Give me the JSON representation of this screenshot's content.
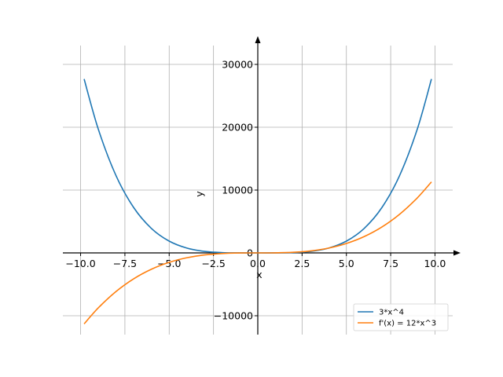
{
  "chart_data": {
    "type": "line",
    "xlabel": "x",
    "ylabel": "y",
    "xlim": [
      -11.0,
      11.0
    ],
    "ylim": [
      -13000,
      33000
    ],
    "grid": true,
    "legend_position": "bottom-right",
    "x_ticks": [
      -10.0,
      -7.5,
      -5.0,
      -2.5,
      0.0,
      2.5,
      5.0,
      7.5,
      10.0
    ],
    "x_tick_labels": [
      "−10.0",
      "−7.5",
      "−5.0",
      "−2.5",
      "0.0",
      "2.5",
      "5.0",
      "7.5",
      "10.0"
    ],
    "y_ticks": [
      -10000,
      0,
      10000,
      20000,
      30000
    ],
    "y_tick_labels": [
      "−10000",
      "0",
      "10000",
      "20000",
      "30000"
    ],
    "series": [
      {
        "name": "3*x^4",
        "color": "#1f77b4",
        "x": [
          -9.8,
          -9.0,
          -8.0,
          -7.0,
          -6.0,
          -5.0,
          -4.0,
          -3.0,
          -2.0,
          -1.0,
          0.0,
          1.0,
          2.0,
          3.0,
          4.0,
          5.0,
          6.0,
          7.0,
          8.0,
          9.0,
          9.8
        ],
        "y": [
          27671,
          19683,
          12288,
          7203,
          3888,
          1875,
          768,
          243,
          48,
          3,
          0,
          3,
          48,
          243,
          768,
          1875,
          3888,
          7203,
          12288,
          19683,
          27671
        ]
      },
      {
        "name": "f'(x) = 12*x^3",
        "color": "#ff7f0e",
        "x": [
          -9.8,
          -9.0,
          -8.0,
          -7.0,
          -6.0,
          -5.0,
          -4.0,
          -3.0,
          -2.0,
          -1.0,
          0.0,
          1.0,
          2.0,
          3.0,
          4.0,
          5.0,
          6.0,
          7.0,
          8.0,
          9.0,
          9.8
        ],
        "y": [
          -11294,
          -8748,
          -6144,
          -4116,
          -2592,
          -1500,
          -768,
          -324,
          -96,
          -12,
          0,
          12,
          96,
          324,
          768,
          1500,
          2592,
          4116,
          6144,
          8748,
          11294
        ]
      }
    ]
  }
}
